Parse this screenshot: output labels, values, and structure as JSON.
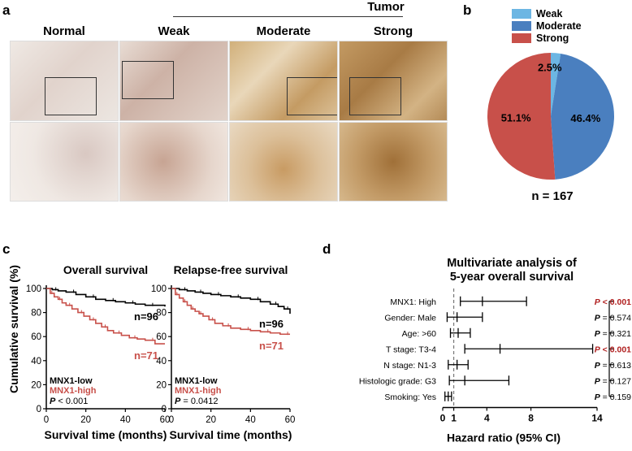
{
  "panel_a": {
    "label": "a",
    "tumor_header": "Tumor",
    "columns": [
      "Normal",
      "Weak",
      "Moderate",
      "Strong"
    ],
    "colors": {
      "normal": "#e6ddd8",
      "weak": "#d8c4b8",
      "moderate": "#c9a772",
      "strong": "#b8905a"
    }
  },
  "panel_b": {
    "label": "b",
    "n_label": "n = 167",
    "colors": {
      "Weak": "#6cb6e3",
      "Moderate": "#4a7fbf",
      "Strong": "#c8504a"
    }
  },
  "panel_c": {
    "label": "c",
    "ylabel": "Cumulative survival (%)",
    "xlabel": "Survival time (months)",
    "legend_low": "MNX1-low",
    "legend_high": "MNX1-high",
    "colors": {
      "low": "#000000",
      "high": "#c8504a"
    }
  },
  "panel_d": {
    "label": "d",
    "title_line1": "Multivariate analysis of",
    "title_line2": "5-year overall survival",
    "xlabel": "Hazard ratio (95% CI)",
    "sig_color": "#b01e1e"
  },
  "chart_data": [
    {
      "type": "pie",
      "labels": [
        "Weak",
        "Moderate",
        "Strong"
      ],
      "values": [
        2.5,
        46.4,
        51.1
      ],
      "value_labels": [
        "2.5%",
        "46.4%",
        "51.1%"
      ],
      "legend": "top"
    },
    {
      "type": "line",
      "title": "Overall survival",
      "xlabel": "Survival time (months)",
      "ylabel": "Cumulative survival (%)",
      "xlim": [
        0,
        60
      ],
      "ylim": [
        0,
        100
      ],
      "xticks": [
        "0",
        "20",
        "40",
        "60"
      ],
      "yticks": [
        "0",
        "20",
        "40",
        "60",
        "80",
        "100"
      ],
      "p_label": "P",
      "p_value": " < 0.001",
      "series": [
        {
          "name": "MNX1-low",
          "n_label": "n=96",
          "x": [
            0,
            3,
            6,
            10,
            15,
            20,
            25,
            30,
            35,
            40,
            45,
            50,
            55,
            60
          ],
          "y": [
            100,
            99,
            98,
            97,
            95,
            93,
            91,
            90,
            89,
            88,
            87,
            86,
            86,
            85
          ]
        },
        {
          "name": "MNX1-high",
          "n_label": "n=71",
          "x": [
            0,
            2,
            4,
            6,
            8,
            10,
            13,
            16,
            19,
            22,
            25,
            28,
            31,
            34,
            38,
            42,
            46,
            50,
            55,
            60
          ],
          "y": [
            100,
            96,
            93,
            91,
            88,
            86,
            83,
            80,
            77,
            74,
            71,
            68,
            65,
            63,
            61,
            59,
            58,
            57,
            54,
            54
          ]
        }
      ]
    },
    {
      "type": "line",
      "title": "Relapse-free survival",
      "xlabel": "Survival time (months)",
      "xlim": [
        0,
        60
      ],
      "ylim": [
        0,
        100
      ],
      "xticks": [
        "0",
        "20",
        "40",
        "60"
      ],
      "yticks": [
        "0",
        "20",
        "40",
        "60",
        "80",
        "100"
      ],
      "p_label": "P",
      "p_value": " = 0.0412",
      "series": [
        {
          "name": "MNX1-low",
          "n_label": "n=96",
          "x": [
            0,
            4,
            8,
            12,
            16,
            20,
            25,
            30,
            35,
            40,
            45,
            50,
            54,
            57,
            60
          ],
          "y": [
            100,
            99,
            98,
            97,
            96,
            95,
            94,
            93,
            92,
            91,
            89,
            87,
            85,
            83,
            79
          ]
        },
        {
          "name": "MNX1-high",
          "n_label": "n=71",
          "x": [
            0,
            2,
            4,
            6,
            8,
            10,
            12,
            14,
            16,
            19,
            22,
            26,
            30,
            35,
            40,
            45,
            50,
            55,
            60
          ],
          "y": [
            100,
            95,
            92,
            89,
            86,
            83,
            81,
            79,
            77,
            74,
            71,
            69,
            67,
            66,
            65,
            64,
            63,
            62,
            62
          ]
        }
      ]
    },
    {
      "type": "forest",
      "title": "Multivariate analysis of 5-year overall survival",
      "xlabel": "Hazard ratio (95% CI)",
      "xlim": [
        0,
        14
      ],
      "xticks": [
        0,
        1,
        4,
        8,
        14
      ],
      "reference_line": 1,
      "rows": [
        {
          "label": "MNX1: High",
          "hr": 3.6,
          "lo": 1.6,
          "hi": 7.6,
          "p_label": "P",
          "p_value": " < 0.001",
          "significant": true
        },
        {
          "label": "Gender: Male",
          "hr": 1.3,
          "lo": 0.4,
          "hi": 3.6,
          "p_label": "P",
          "p_value": " = 0.574",
          "significant": false
        },
        {
          "label": "Age: >60",
          "hr": 1.4,
          "lo": 0.7,
          "hi": 2.5,
          "p_label": "P",
          "p_value": " = 0.321",
          "significant": false
        },
        {
          "label": "T stage: T3-4",
          "hr": 5.2,
          "lo": 2.0,
          "hi": 13.6,
          "p_label": "P",
          "p_value": " < 0.001",
          "significant": true
        },
        {
          "label": "N stage: N1-3",
          "hr": 1.3,
          "lo": 0.5,
          "hi": 2.3,
          "p_label": "P",
          "p_value": " = 0.613",
          "significant": false
        },
        {
          "label": "Histologic grade: G3",
          "hr": 2.0,
          "lo": 0.6,
          "hi": 6.0,
          "p_label": "P",
          "p_value": " = 0.127",
          "significant": false
        },
        {
          "label": "Smoking: Yes",
          "hr": 0.5,
          "lo": 0.2,
          "hi": 0.8,
          "p_label": "P",
          "p_value": " = 0.159",
          "significant": false
        }
      ]
    }
  ]
}
